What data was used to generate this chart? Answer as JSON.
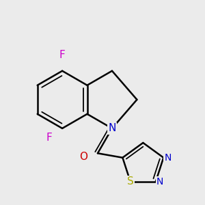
{
  "background_color": "#ebebeb",
  "bond_color": "#000000",
  "bond_width": 1.8,
  "atom_colors": {
    "F": "#cc00cc",
    "N": "#0000cc",
    "O": "#cc0000",
    "S": "#aaaa00",
    "C": "#000000"
  },
  "font_size": 11,
  "figsize": [
    3.0,
    3.0
  ],
  "dpi": 100,
  "xlim": [
    0.0,
    7.0
  ],
  "ylim": [
    0.5,
    6.5
  ]
}
